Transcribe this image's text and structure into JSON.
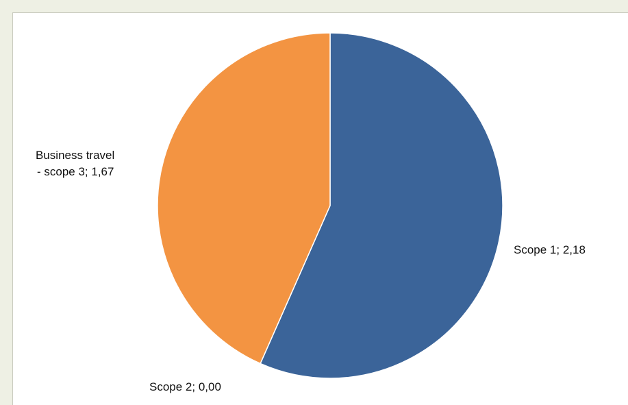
{
  "chart_data": {
    "type": "pie",
    "title": "",
    "categories": [
      "Scope 1",
      "Scope 2",
      "Business travel - scope 3"
    ],
    "values": [
      2.18,
      0.0,
      1.67
    ],
    "colors": [
      "#3b6499",
      "#3b6499",
      "#f39442"
    ],
    "data_labels": [
      [
        "Scope 1; 2,18"
      ],
      [
        "Scope 2; 0,00"
      ],
      [
        "Business travel",
        "- scope 3; 1,67"
      ]
    ],
    "legend": "none",
    "start_angle_deg": 0,
    "direction": "clockwise"
  }
}
